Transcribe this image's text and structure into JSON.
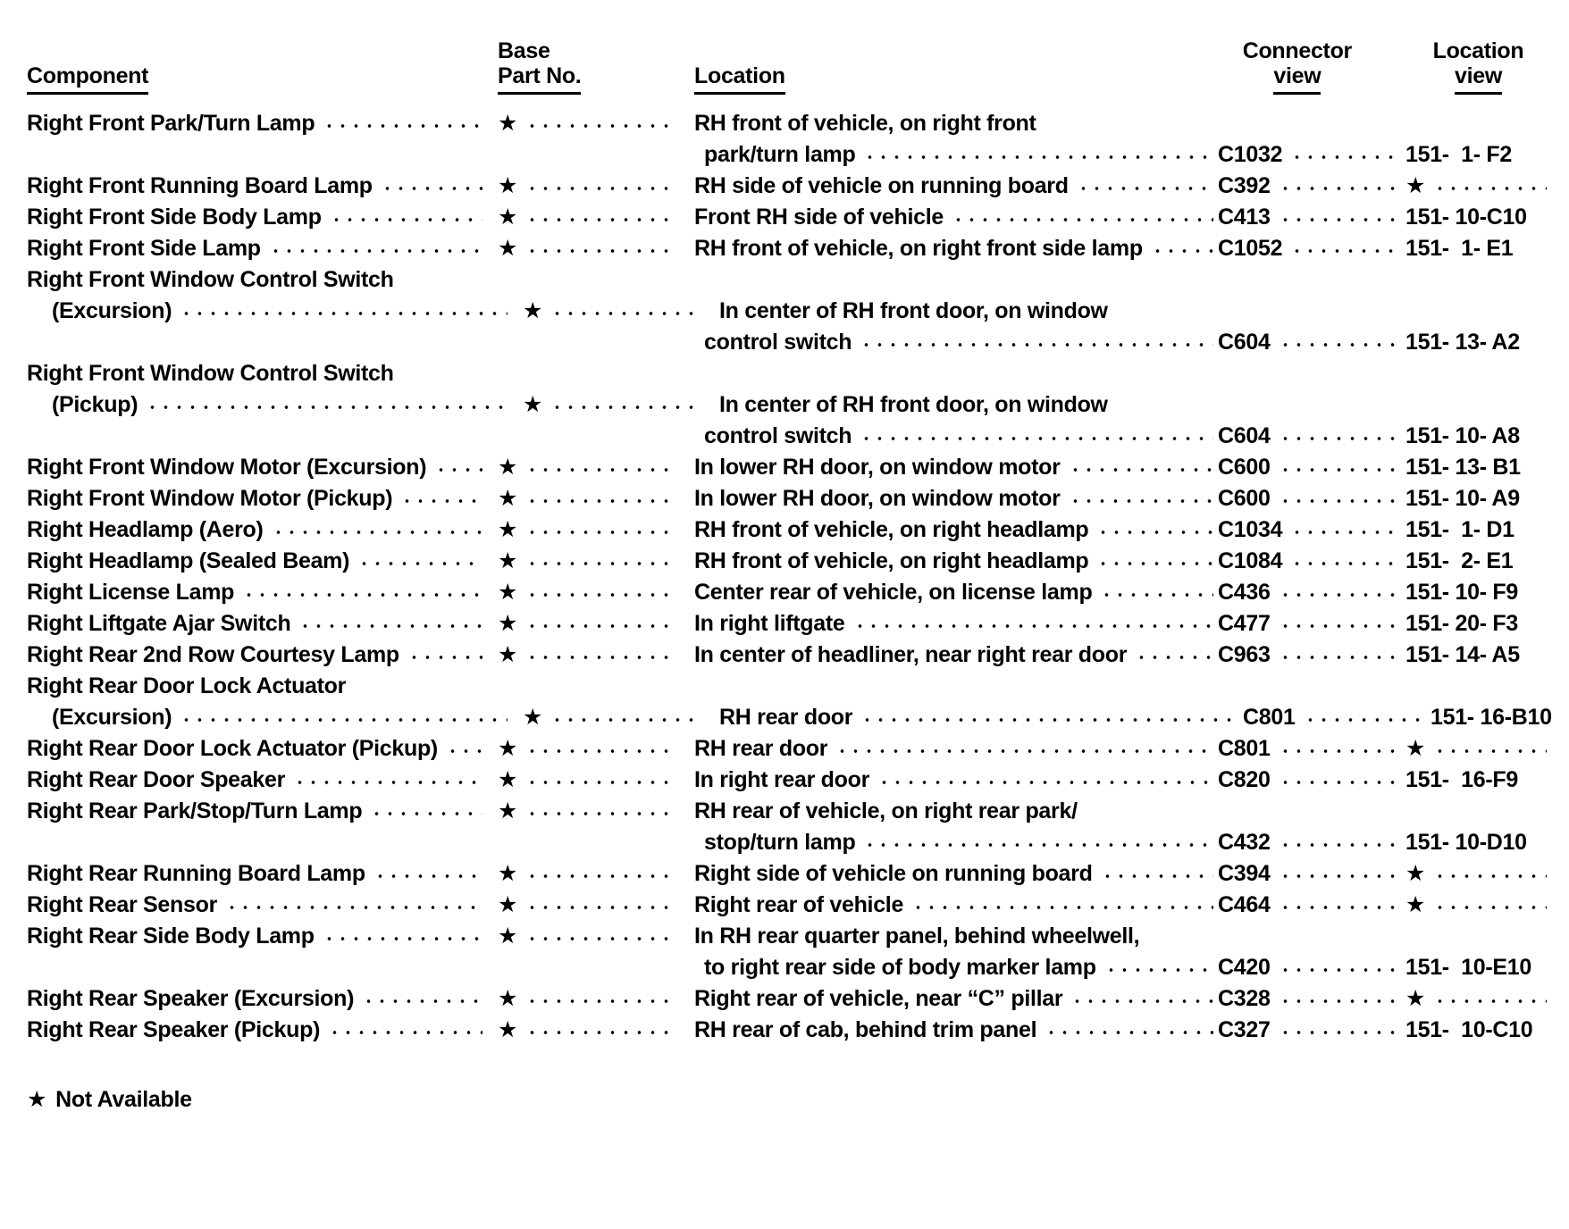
{
  "page": {
    "background": "#ffffff",
    "text_color": "#000000"
  },
  "header": {
    "component": "Component",
    "base": "Base",
    "part_no": "Part No.",
    "location": "Location",
    "connector_line1": "Connector",
    "connector_line2": "view",
    "location_view_line1": "Location",
    "location_view_line2": "view"
  },
  "symbols": {
    "star": "★",
    "star_meaning": "Not Available"
  },
  "footer": {
    "note_symbol": "★",
    "note_text": "Not Available"
  },
  "lines": [
    {
      "c": "Right Front Park/Turn Lamp",
      "p": "★",
      "l": "RH front of vehicle, on right front"
    },
    {
      "l": "park/turn lamp",
      "li": true,
      "cn": "C1032",
      "lv": "151-  1- F2"
    },
    {
      "c": "Right Front Running Board Lamp",
      "p": "★",
      "l": "RH side of vehicle on running board",
      "cn": "C392",
      "lv": "★",
      "lvd": true
    },
    {
      "c": "Right Front Side Body Lamp",
      "p": "★",
      "l": "Front RH side of vehicle",
      "cn": "C413",
      "lv": "151- 10-C10"
    },
    {
      "c": "Right Front Side Lamp",
      "p": "★",
      "l": "RH front of vehicle, on right front side lamp",
      "cn": "C1052",
      "lv": "151-  1- E1"
    },
    {
      "c": "Right Front Window Control Switch"
    },
    {
      "c": "(Excursion)",
      "ci": true,
      "p": "★",
      "l": "In center of RH front door, on window"
    },
    {
      "l": "control switch",
      "li": true,
      "cn": "C604",
      "lv": "151- 13- A2"
    },
    {
      "c": "Right Front Window Control Switch"
    },
    {
      "c": "(Pickup)",
      "ci": true,
      "p": "★",
      "l": "In center of RH front door, on window"
    },
    {
      "l": "control switch",
      "li": true,
      "cn": "C604",
      "lv": "151- 10- A8"
    },
    {
      "c": "Right Front Window Motor (Excursion)",
      "p": "★",
      "l": "In lower RH door, on window motor",
      "cn": "C600",
      "lv": "151- 13- B1"
    },
    {
      "c": "Right Front Window Motor (Pickup)",
      "p": "★",
      "l": "In lower RH door, on window motor",
      "cn": "C600",
      "lv": "151- 10- A9"
    },
    {
      "c": "Right Headlamp (Aero)",
      "p": "★",
      "l": "RH front of vehicle, on right headlamp",
      "cn": "C1034",
      "lv": "151-  1- D1"
    },
    {
      "c": "Right Headlamp (Sealed Beam)",
      "p": "★",
      "l": "RH front of vehicle, on right headlamp",
      "cn": "C1084",
      "lv": "151-  2- E1"
    },
    {
      "c": "Right License Lamp",
      "p": "★",
      "l": "Center rear of vehicle, on license lamp",
      "cn": "C436",
      "lv": "151- 10- F9"
    },
    {
      "c": "Right Liftgate Ajar Switch",
      "p": "★",
      "l": "In right liftgate",
      "cn": "C477",
      "lv": "151- 20- F3"
    },
    {
      "c": "Right Rear 2nd Row Courtesy Lamp",
      "p": "★",
      "l": "In center of headliner, near right rear door",
      "cn": "C963",
      "lv": "151- 14- A5"
    },
    {
      "c": "Right Rear Door Lock Actuator"
    },
    {
      "c": "(Excursion)",
      "ci": true,
      "p": "★",
      "l": "RH rear door",
      "cn": "C801",
      "lv": "151- 16-B10"
    },
    {
      "c": "Right Rear Door Lock Actuator (Pickup)",
      "p": "★",
      "l": "RH rear door",
      "cn": "C801",
      "lv": "★",
      "lvd": true
    },
    {
      "c": "Right Rear Door Speaker",
      "p": "★",
      "l": "In right rear door",
      "cn": "C820",
      "lv": "151-  16-F9"
    },
    {
      "c": "Right Rear Park/Stop/Turn Lamp",
      "p": "★",
      "l": "RH rear of vehicle, on right rear park/"
    },
    {
      "l": "stop/turn lamp",
      "li": true,
      "cn": "C432",
      "lv": "151- 10-D10"
    },
    {
      "c": "Right Rear Running Board Lamp",
      "p": "★",
      "l": "Right side of vehicle on running board",
      "cn": "C394",
      "lv": "★",
      "lvd": true
    },
    {
      "c": "Right Rear Sensor",
      "p": "★",
      "l": "Right rear of vehicle",
      "cn": "C464",
      "lv": "★",
      "lvd": true
    },
    {
      "c": "Right Rear Side Body Lamp",
      "p": "★",
      "l": "In RH rear quarter panel, behind wheelwell,"
    },
    {
      "l": "to right rear side of body marker lamp",
      "li": true,
      "cn": "C420",
      "lv": "151-  10-E10"
    },
    {
      "c": "Right Rear Speaker (Excursion)",
      "p": "★",
      "l": "Right rear of vehicle, near “C” pillar",
      "cn": "C328",
      "lv": "★",
      "lvd": true
    },
    {
      "c": "Right Rear Speaker (Pickup)",
      "p": "★",
      "l": "RH rear of cab, behind trim panel",
      "cn": "C327",
      "lv": "151-  10-C10"
    }
  ]
}
